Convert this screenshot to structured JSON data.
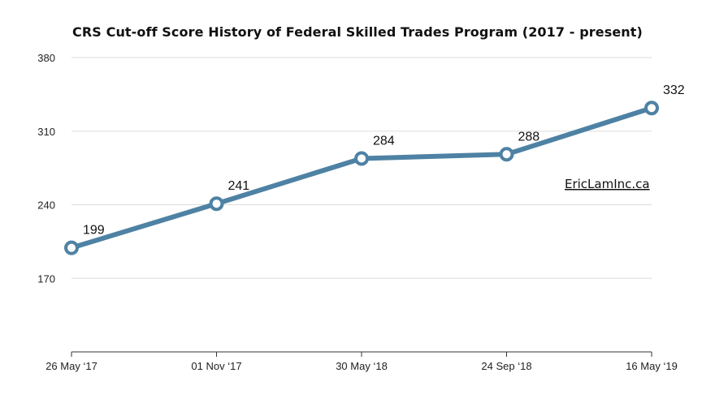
{
  "chart_data": {
    "type": "line",
    "title": "CRS Cut-off Score History of Federal Skilled Trades Program (2017 - present)",
    "xlabel": "",
    "ylabel": "",
    "categories": [
      "26 May ‘17",
      "01 Nov ‘17",
      "30 May ‘18",
      "24 Sep ‘18",
      "16 May ‘19"
    ],
    "series": [
      {
        "values": [
          199,
          241,
          284,
          288,
          332
        ]
      }
    ],
    "data_labels": [
      "199",
      "241",
      "284",
      "288",
      "332"
    ],
    "ylim": [
      100,
      380
    ],
    "yticks": [
      170,
      240,
      310,
      380
    ],
    "grid": true,
    "legend": "none",
    "annotation": "EricLamInc.ca",
    "colors": {
      "line": "#4e82a4",
      "marker_fill": "#ffffff",
      "grid": "#dddddd",
      "axis": "#333333"
    }
  }
}
